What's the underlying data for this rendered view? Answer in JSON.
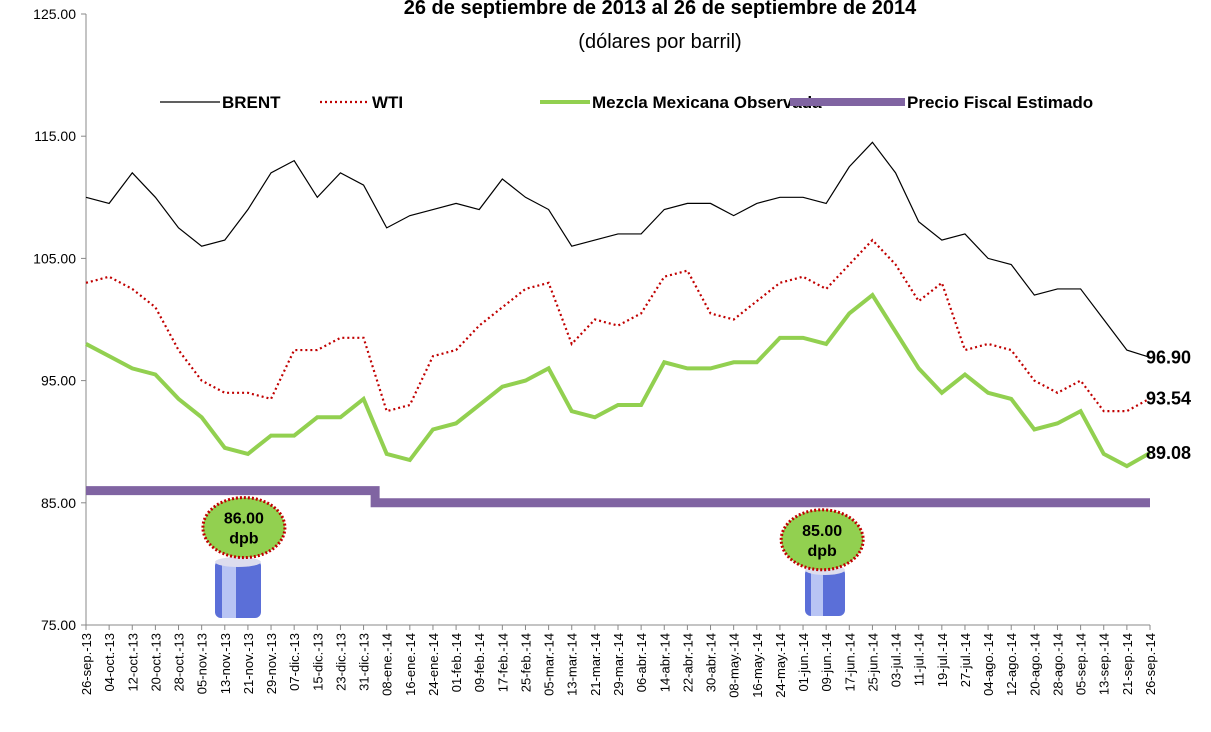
{
  "chart_data": {
    "type": "line",
    "title": "26 de septiembre de 2013 al 26 de septiembre de 2014",
    "subtitle": "(dólares por barril)",
    "categories": [
      "26-sep.-13",
      "04-oct.-13",
      "12-oct.-13",
      "20-oct.-13",
      "28-oct.-13",
      "05-nov.-13",
      "13-nov.-13",
      "21-nov.-13",
      "29-nov.-13",
      "07-dic.-13",
      "15-dic.-13",
      "23-dic.-13",
      "31-dic.-13",
      "08-ene.-14",
      "16-ene.-14",
      "24-ene.-14",
      "01-feb.-14",
      "09-feb.-14",
      "17-feb.-14",
      "25-feb.-14",
      "05-mar.-14",
      "13-mar.-14",
      "21-mar.-14",
      "29-mar.-14",
      "06-abr.-14",
      "14-abr.-14",
      "22-abr.-14",
      "30-abr.-14",
      "08-may.-14",
      "16-may.-14",
      "24-may.-14",
      "01-jun.-14",
      "09-jun.-14",
      "17-jun.-14",
      "25-jun.-14",
      "03-jul.-14",
      "11-jul.-14",
      "19-jul.-14",
      "27-jul.-14",
      "04-ago.-14",
      "12-ago.-14",
      "20-ago.-14",
      "28-ago.-14",
      "05-sep.-14",
      "13-sep.-14",
      "21-sep.-14",
      "26-sep.-14"
    ],
    "series": [
      {
        "name": "BRENT",
        "color": "#000000",
        "width": 1.2,
        "dash": "none",
        "end_label": "96.90",
        "values": [
          110,
          109.5,
          112,
          110,
          107.5,
          106,
          106.5,
          109,
          112,
          113,
          110,
          112,
          111,
          107.5,
          108.5,
          109,
          109.5,
          109,
          111.5,
          110,
          109,
          106,
          106.5,
          107,
          107,
          109,
          109.5,
          109.5,
          108.5,
          109.5,
          110,
          110,
          109.5,
          112.5,
          114.5,
          112,
          108,
          106.5,
          107,
          105,
          104.5,
          102,
          102.5,
          102.5,
          100,
          97.5,
          96.9
        ]
      },
      {
        "name": "WTI",
        "color": "#c00000",
        "width": 2.2,
        "dash": "2,3",
        "end_label": "93.54",
        "values": [
          103,
          103.5,
          102.5,
          101,
          97.5,
          95,
          94,
          94,
          93.5,
          97.5,
          97.5,
          98.5,
          98.5,
          92.5,
          93,
          97,
          97.5,
          99.5,
          101,
          102.5,
          103,
          98,
          100,
          99.5,
          100.5,
          103.5,
          104,
          100.5,
          100,
          101.5,
          103,
          103.5,
          102.5,
          104.5,
          106.5,
          104.5,
          101.5,
          103,
          97.5,
          98,
          97.5,
          95,
          94,
          95,
          92.5,
          92.5,
          93.54
        ]
      },
      {
        "name": "Mezcla Mexicana Observada",
        "color": "#92d050",
        "width": 4,
        "dash": "none",
        "end_label": "89.08",
        "values": [
          98,
          97,
          96,
          95.5,
          93.5,
          92,
          89.5,
          89,
          90.5,
          90.5,
          92,
          92,
          93.5,
          89,
          88.5,
          91,
          91.5,
          93,
          94.5,
          95,
          96,
          92.5,
          92,
          93,
          93,
          96.5,
          96,
          96,
          96.5,
          96.5,
          98.5,
          98.5,
          98,
          100.5,
          102,
          99,
          96,
          94,
          95.5,
          94,
          93.5,
          91,
          91.5,
          92.5,
          89,
          88,
          89.08
        ]
      },
      {
        "name": "Precio Fiscal Estimado",
        "color": "#8064a2",
        "width": 9,
        "dash": "none",
        "step": true,
        "values": [
          86,
          86,
          86,
          86,
          86,
          86,
          86,
          86,
          86,
          86,
          86,
          86,
          86,
          85,
          85,
          85,
          85,
          85,
          85,
          85,
          85,
          85,
          85,
          85,
          85,
          85,
          85,
          85,
          85,
          85,
          85,
          85,
          85,
          85,
          85,
          85,
          85,
          85,
          85,
          85,
          85,
          85,
          85,
          85,
          85,
          85,
          85
        ]
      }
    ],
    "annotations": [
      {
        "index": 7,
        "value": 86,
        "lines": [
          "86.00",
          "dpb"
        ]
      },
      {
        "index": 32,
        "value": 85,
        "lines": [
          "85.00",
          "dpb"
        ]
      }
    ],
    "ylim": [
      75,
      125
    ],
    "yticks": [
      {
        "value": 75,
        "label": "75.00"
      },
      {
        "value": 85,
        "label": "85.00"
      },
      {
        "value": 95,
        "label": "95.00"
      },
      {
        "value": 105,
        "label": "105.00"
      },
      {
        "value": 115,
        "label": "115.00"
      },
      {
        "value": 125,
        "label": "125.00"
      }
    ]
  }
}
